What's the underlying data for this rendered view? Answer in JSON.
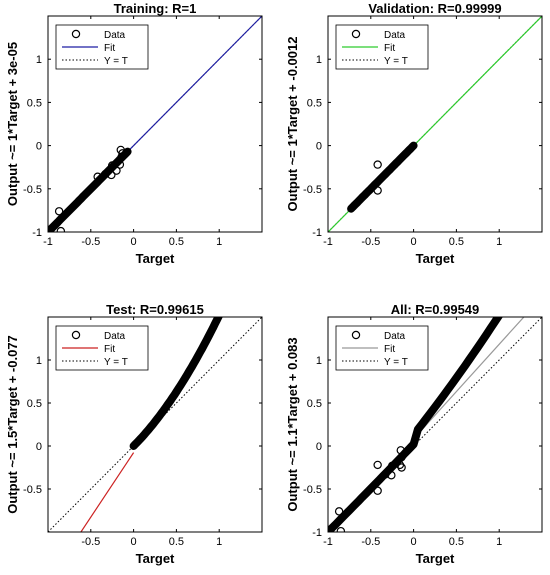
{
  "chart_data": [
    {
      "type": "scatter",
      "title": "Training: R=1",
      "xlabel": "Target",
      "ylabel": "Output ~= 1*Target + 3e-05",
      "xlim": [
        -1,
        1.5
      ],
      "ylim": [
        -1,
        1.5
      ],
      "xticks": [
        "-1",
        "-0.5",
        "0",
        "0.5",
        "1"
      ],
      "yticks": [
        "-1",
        "-0.5",
        "0",
        "0.5",
        "1"
      ],
      "grid": false,
      "legend": {
        "position": "top-left",
        "entries": [
          "Data",
          "Fit",
          "Y = T"
        ]
      },
      "fit": {
        "slope": 1,
        "intercept": 3e-05,
        "color": "#1f1fa3",
        "x_range": [
          -1,
          1.5
        ]
      },
      "data_curve": {
        "x_range": [
          -1,
          -0.07
        ]
      },
      "data_points": [
        {
          "x": -0.87,
          "y": -0.76
        },
        {
          "x": -0.85,
          "y": -0.99
        },
        {
          "x": -0.42,
          "y": -0.36
        },
        {
          "x": -0.33,
          "y": -0.33
        },
        {
          "x": -0.26,
          "y": -0.34
        },
        {
          "x": -0.25,
          "y": -0.23
        },
        {
          "x": -0.2,
          "y": -0.29
        },
        {
          "x": -0.16,
          "y": -0.22
        },
        {
          "x": -0.15,
          "y": -0.05
        },
        {
          "x": -0.14,
          "y": -0.13
        },
        {
          "x": -0.13,
          "y": -0.09
        }
      ]
    },
    {
      "type": "scatter",
      "title": "Validation: R=0.99999",
      "xlabel": "Target",
      "ylabel": "Output ~= 1*Target + -0.0012",
      "xlim": [
        -1,
        1.5
      ],
      "ylim": [
        -1,
        1.5
      ],
      "xticks": [
        "-1",
        "-0.5",
        "0",
        "0.5",
        "1"
      ],
      "yticks": [
        "-1",
        "-0.5",
        "0",
        "0.5",
        "1"
      ],
      "grid": false,
      "legend": {
        "position": "top-left",
        "entries": [
          "Data",
          "Fit",
          "Y = T"
        ]
      },
      "fit": {
        "slope": 1,
        "intercept": -0.0012,
        "color": "#2ecc2e",
        "x_range": [
          -1,
          1.5
        ]
      },
      "data_curve": {
        "x_range": [
          -0.73,
          0
        ]
      },
      "data_points": [
        {
          "x": -0.42,
          "y": -0.22
        },
        {
          "x": -0.42,
          "y": -0.52
        }
      ]
    },
    {
      "type": "scatter",
      "title": "Test: R=0.99615",
      "xlabel": "Target",
      "ylabel": "Output ~= 1.5*Target + -0.077",
      "xlim": [
        -1,
        1.5
      ],
      "ylim": [
        -1,
        1.5
      ],
      "xticks": [
        "-0.5",
        "0",
        "0.5",
        "1"
      ],
      "yticks": [
        "-0.5",
        "0",
        "0.5",
        "1"
      ],
      "grid": false,
      "legend": {
        "position": "top-left",
        "entries": [
          "Data",
          "Fit",
          "Y = T"
        ]
      },
      "fit": {
        "slope": 1.5,
        "intercept": -0.077,
        "color": "#cc2222",
        "x_range": [
          -0.62,
          0
        ]
      },
      "data_curve": {
        "x_range": [
          0,
          1
        ],
        "curvature": 0.52
      },
      "data_points": []
    },
    {
      "type": "scatter",
      "title": "All: R=0.99549",
      "xlabel": "Target",
      "ylabel": "Output ~= 1.1*Target + 0.083",
      "xlim": [
        -1,
        1.5
      ],
      "ylim": [
        -1,
        1.5
      ],
      "xticks": [
        "-1",
        "-0.5",
        "0",
        "0.5",
        "1"
      ],
      "yticks": [
        "-1",
        "-0.5",
        "0",
        "0.5",
        "1"
      ],
      "grid": false,
      "legend": {
        "position": "top-left",
        "entries": [
          "Data",
          "Fit",
          "Y = T"
        ]
      },
      "fit": {
        "slope": 1.1,
        "intercept": 0.083,
        "color": "#999999",
        "x_range": [
          -1,
          1.5
        ]
      },
      "data_curve": {
        "x_range": [
          -1,
          1
        ],
        "curvature": 0.26
      },
      "data_points": [
        {
          "x": -0.87,
          "y": -0.76
        },
        {
          "x": -0.85,
          "y": -0.99
        },
        {
          "x": -0.42,
          "y": -0.22
        },
        {
          "x": -0.42,
          "y": -0.52
        },
        {
          "x": -0.33,
          "y": -0.33
        },
        {
          "x": -0.26,
          "y": -0.34
        },
        {
          "x": -0.25,
          "y": -0.23
        },
        {
          "x": -0.16,
          "y": -0.22
        },
        {
          "x": -0.15,
          "y": -0.05
        },
        {
          "x": -0.14,
          "y": -0.13
        },
        {
          "x": -0.14,
          "y": -0.25
        }
      ]
    }
  ]
}
